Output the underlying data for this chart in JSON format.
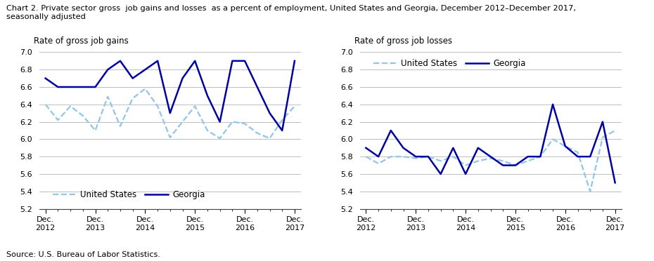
{
  "title": "Chart 2. Private sector gross  job gains and losses  as a percent of employment, United States and Georgia, December 2012–December 2017,\nseasonally adjusted",
  "source": "Source: U.S. Bureau of Labor Statistics.",
  "left_ylabel": "Rate of gross job gains",
  "right_ylabel": "Rate of gross job losses",
  "xtick_labels": [
    "Dec.\n2012",
    "Dec.\n2013",
    "Dec.\n2014",
    "Dec.\n2015",
    "Dec.\n2016",
    "Dec.\n2017"
  ],
  "xtick_positions": [
    0,
    4,
    8,
    12,
    16,
    20
  ],
  "ylim": [
    5.2,
    7.0
  ],
  "yticks": [
    5.2,
    5.4,
    5.6,
    5.8,
    6.0,
    6.2,
    6.4,
    6.6,
    6.8,
    7.0
  ],
  "gains_us": [
    6.4,
    6.22,
    6.38,
    6.27,
    6.1,
    6.49,
    6.15,
    6.47,
    6.58,
    6.38,
    6.02,
    6.2,
    6.38,
    6.1,
    6.01,
    6.2,
    6.18,
    6.07,
    6.01,
    6.22,
    6.38
  ],
  "gains_georgia": [
    6.7,
    6.6,
    6.6,
    6.6,
    6.6,
    6.8,
    6.9,
    6.7,
    6.8,
    6.9,
    6.3,
    6.7,
    6.9,
    6.5,
    6.2,
    6.9,
    6.9,
    6.6,
    6.3,
    6.1,
    6.9
  ],
  "losses_us": [
    5.8,
    5.72,
    5.8,
    5.8,
    5.78,
    5.8,
    5.75,
    5.8,
    5.7,
    5.75,
    5.78,
    5.75,
    5.7,
    5.75,
    5.8,
    6.0,
    5.92,
    5.85,
    5.4,
    6.02,
    6.1
  ],
  "losses_georgia": [
    5.9,
    5.8,
    6.1,
    5.9,
    5.8,
    5.8,
    5.6,
    5.9,
    5.6,
    5.9,
    5.8,
    5.7,
    5.7,
    5.8,
    5.8,
    6.4,
    5.92,
    5.8,
    5.8,
    6.2,
    5.5
  ],
  "us_color": "#92C5E8",
  "georgia_color": "#0000A0",
  "us_label": "United States",
  "georgia_label": "Georgia"
}
